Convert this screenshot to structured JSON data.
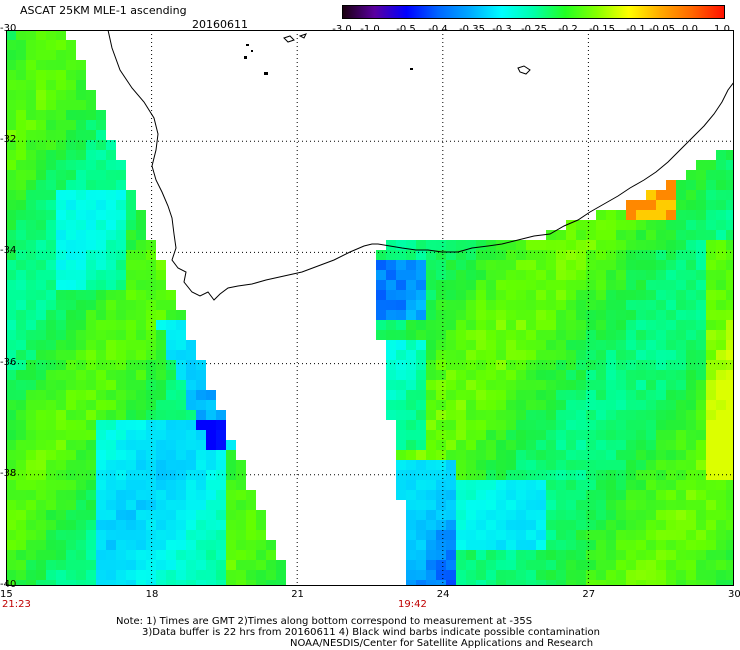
{
  "title": "ASCAT 25KM MLE-1 ascending",
  "date": "20160611",
  "colorbar": {
    "labels": [
      "-3.0",
      "-1.0",
      "-0.5",
      "-0.4",
      "-0.35",
      "-0.3",
      "-0.25",
      "-0.2",
      "-0.15",
      "-0.1",
      "-0.05",
      "0.0",
      "1.0"
    ],
    "colors": [
      "#1a0010",
      "#5a00a0",
      "#0000ff",
      "#0066ff",
      "#00aaff",
      "#00ffff",
      "#00ffaa",
      "#22ff22",
      "#88ff00",
      "#ffff00",
      "#ffaa00",
      "#ff6600",
      "#ff1100"
    ]
  },
  "axes": {
    "lat_labels": [
      "-30",
      "-32",
      "-34",
      "-36",
      "-38",
      "-40"
    ],
    "lon_labels": [
      "15",
      "18",
      "21",
      "24",
      "27",
      "30"
    ]
  },
  "times": {
    "left_swath": "21:23",
    "right_swath": "19:42"
  },
  "notes": {
    "line1": "Note: 1) Times are GMT 2)Times along bottom correspond to measurement at -35S",
    "line2": "3)Data buffer is 22 hrs from 20160611 4) Black wind barbs indicate possible contamination",
    "line3": "NOAA/NESDIS/Center for Satellite Applications and Research"
  }
}
